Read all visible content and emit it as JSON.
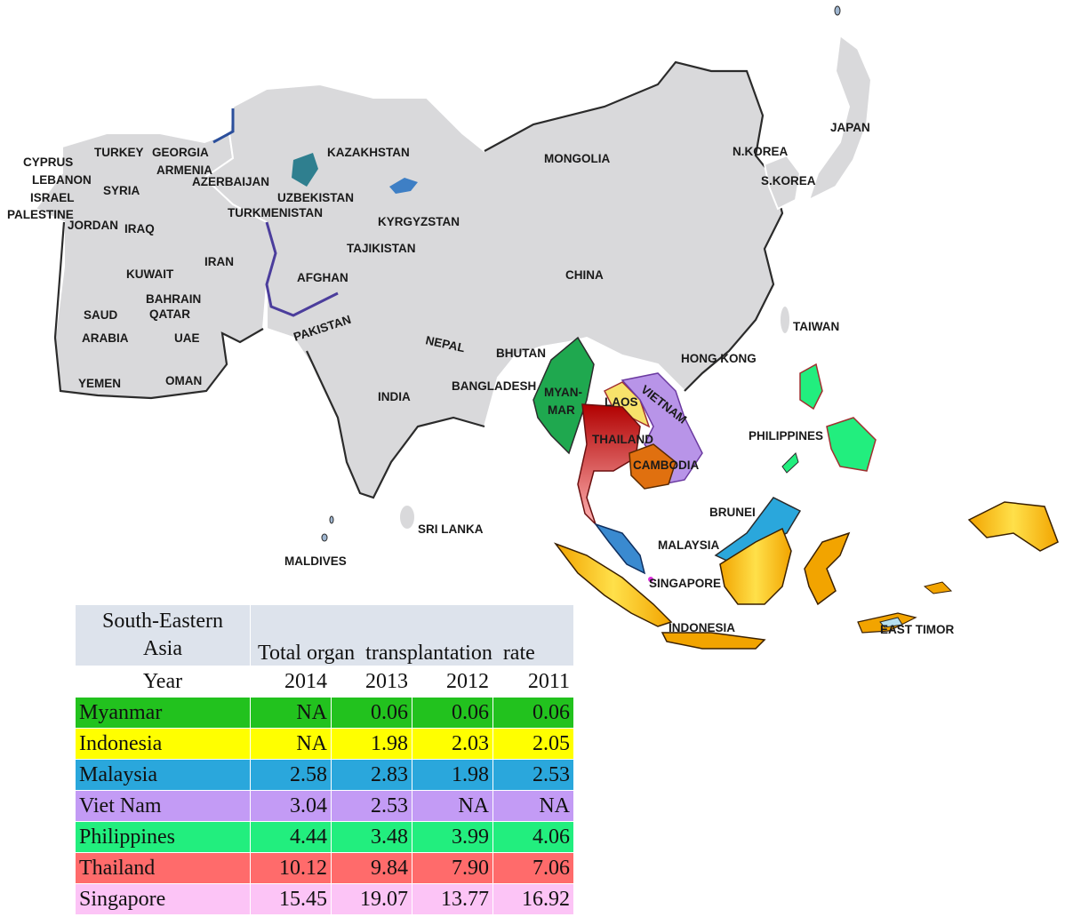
{
  "map_labels": {
    "cyprus": "CYPRUS",
    "turkey": "TURKEY",
    "georgia": "GEORGIA",
    "armenia": "ARMENIA",
    "azerbaijan": "AZERBAIJAN",
    "lebanon": "LEBANON",
    "syria": "SYRIA",
    "israel": "ISRAEL",
    "palestine": "PALESTINE",
    "jordan": "JORDAN",
    "iraq": "IRAQ",
    "kazakhstan": "KAZAKHSTAN",
    "uzbekistan": "UZBEKISTAN",
    "turkmenistan": "TURKMENISTAN",
    "kyrgyzstan": "KYRGYZSTAN",
    "tajikistan": "TAJIKISTAN",
    "mongolia": "MONGOLIA",
    "nkorea": "N.KOREA",
    "skorea": "S.KOREA",
    "japan": "JAPAN",
    "iran": "IRAN",
    "kuwait": "KUWAIT",
    "bahrain": "BAHRAIN",
    "qatar": "QATAR",
    "saud": "SAUD",
    "arabia": "ARABIA",
    "uae": "UAE",
    "yemen": "YEMEN",
    "oman": "OMAN",
    "afghan": "AFGHAN",
    "pakistan": "PAKISTAN",
    "china": "CHINA",
    "taiwan": "TAIWAN",
    "nepal": "NEPAL",
    "bhutan": "BHUTAN",
    "hongkong": "HONG KONG",
    "india": "INDIA",
    "bangladesh": "BANGLADESH",
    "myan": "MYAN-",
    "mar": "MAR",
    "laos": "LAOS",
    "vietnam": "VIETNAM",
    "thailand": "THAILAND",
    "cambodia": "CAMBODIA",
    "philippines": "PHILIPPINES",
    "srilanka": "SRI LANKA",
    "maldives": "MALDIVES",
    "brunei": "BRUNEI",
    "malaysia": "MALAYSIA",
    "singapore": "SINGAPORE",
    "indonesia": "INDONESIA",
    "easttimor": "EAST TIMOR"
  },
  "colors": {
    "myanmar": "#22c21e",
    "indonesia": "#ffff00",
    "malaysia": "#2aa7dc",
    "vietnam": "#c39bf5",
    "philippines": "#22ee7e",
    "thailand": "#ff6b6b",
    "singapore": "#fcc4f6",
    "header": "#dde3ec"
  },
  "table": {
    "region_line1": "South-Eastern",
    "region_line2": "Asia",
    "measure": "Total organ  transplantation  rate",
    "year_label": "Year",
    "years": [
      "2014",
      "2013",
      "2012",
      "2011"
    ],
    "rows": [
      {
        "country": "Myanmar",
        "values": [
          "NA",
          "0.06",
          "0.06",
          "0.06"
        ],
        "color": "#22c21e"
      },
      {
        "country": "Indonesia",
        "values": [
          "NA",
          "1.98",
          "2.03",
          "2.05"
        ],
        "color": "#ffff00"
      },
      {
        "country": "Malaysia",
        "values": [
          "2.58",
          "2.83",
          "1.98",
          "2.53"
        ],
        "color": "#2aa7dc"
      },
      {
        "country": "Viet Nam",
        "values": [
          "3.04",
          "2.53",
          "NA",
          "NA"
        ],
        "color": "#c39bf5"
      },
      {
        "country": "Philippines",
        "values": [
          "4.44",
          "3.48",
          "3.99",
          "4.06"
        ],
        "color": "#22ee7e"
      },
      {
        "country": "Thailand",
        "values": [
          "10.12",
          "9.84",
          "7.90",
          "7.06"
        ],
        "color": "#ff6b6b"
      },
      {
        "country": "Singapore",
        "values": [
          "15.45",
          "19.07",
          "13.77",
          "16.92"
        ],
        "color": "#fcc4f6"
      }
    ]
  }
}
